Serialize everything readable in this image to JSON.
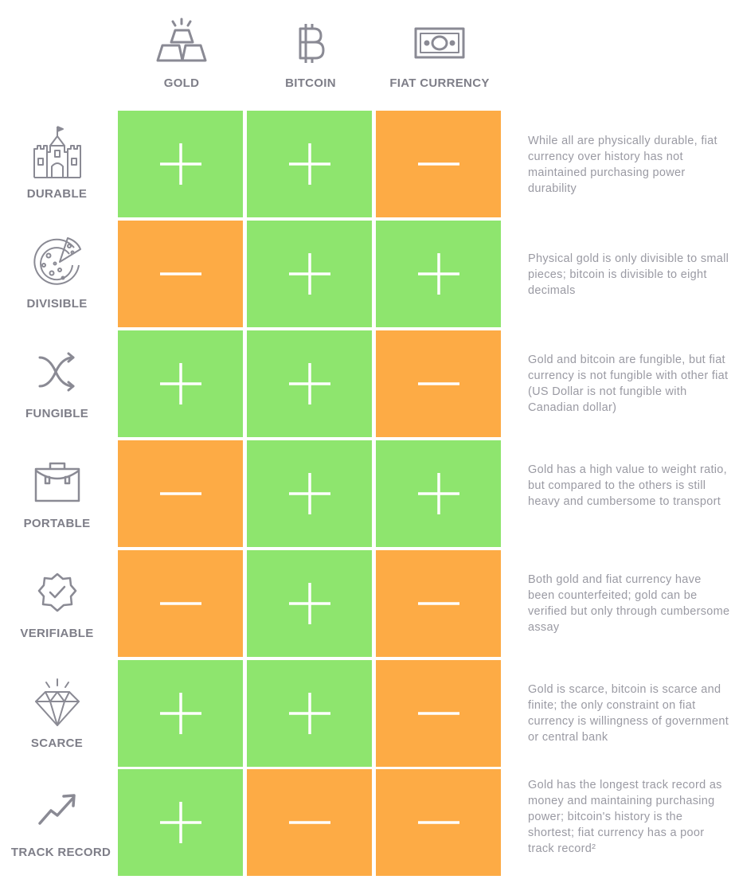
{
  "columns": [
    {
      "label": "GOLD",
      "icon": "gold-bars-icon"
    },
    {
      "label": "BITCOIN",
      "icon": "bitcoin-icon"
    },
    {
      "label": "FIAT CURRENCY",
      "icon": "banknote-icon"
    }
  ],
  "rows": [
    {
      "label": "DURABLE",
      "icon": "castle-icon",
      "values": [
        "+",
        "+",
        "−"
      ],
      "note": "While all are physically durable, fiat currency over history has not maintained purchasing power durability"
    },
    {
      "label": "DIVISIBLE",
      "icon": "pizza-icon",
      "values": [
        "−",
        "+",
        "+"
      ],
      "note": "Physical gold is only divisible to small pieces; bitcoin is divisible to eight decimals"
    },
    {
      "label": "FUNGIBLE",
      "icon": "shuffle-icon",
      "values": [
        "+",
        "+",
        "−"
      ],
      "note": "Gold and bitcoin are fungible, but fiat currency is not fungible with other fiat (US Dollar is not fungible with Canadian dollar)"
    },
    {
      "label": "PORTABLE",
      "icon": "briefcase-icon",
      "values": [
        "−",
        "+",
        "+"
      ],
      "note": "Gold has a high value to weight ratio, but compared to the others is still heavy and cumbersome to transport"
    },
    {
      "label": "VERIFIABLE",
      "icon": "verified-badge-icon",
      "values": [
        "−",
        "+",
        "−"
      ],
      "note": "Both gold and fiat currency have been counterfeited; gold can be verified but only through cumbersome assay"
    },
    {
      "label": "SCARCE",
      "icon": "diamond-icon",
      "values": [
        "+",
        "+",
        "−"
      ],
      "note": "Gold is scarce, bitcoin is scarce and finite; the only constraint on fiat currency is willingness of government or central bank"
    },
    {
      "label": "TRACK RECORD",
      "icon": "trend-up-icon",
      "values": [
        "+",
        "−",
        "−"
      ],
      "note": "Gold has the longest track record as money and maintaining purchasing power; bitcoin's history is the shortest; fiat currency has a poor track record²"
    }
  ],
  "colors": {
    "plus": "#8ee56e",
    "minus": "#fdab45",
    "label": "#7e7e88",
    "note": "#9a9aa3",
    "icon": "#8a8a94"
  }
}
